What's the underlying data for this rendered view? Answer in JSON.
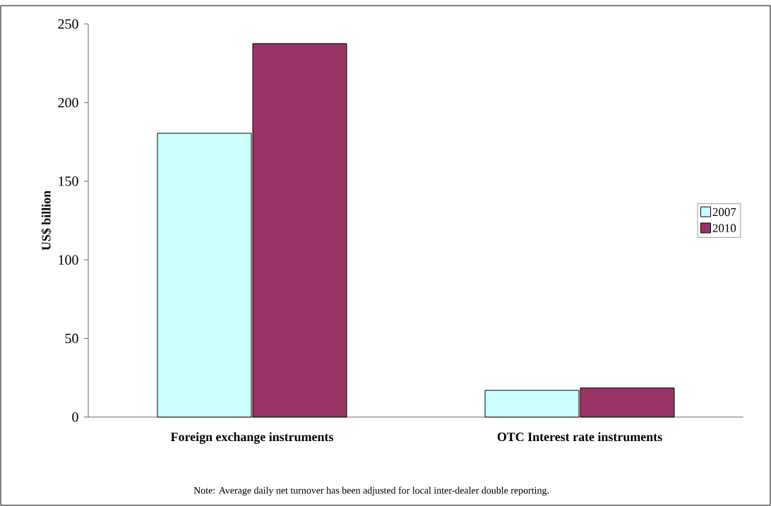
{
  "chart_data": {
    "type": "bar",
    "ylabel": "US$ billion",
    "categories": [
      "Foreign exchange instruments",
      "OTC Interest rate instruments"
    ],
    "series": [
      {
        "name": "2007",
        "color": "#ccffff",
        "values": [
          180.5,
          17
        ]
      },
      {
        "name": "2010",
        "color": "#993366",
        "values": [
          237.5,
          18.5
        ]
      }
    ],
    "ylim": [
      0,
      250
    ],
    "yticks": [
      0,
      50,
      100,
      150,
      200,
      250
    ],
    "grid": false,
    "legend": "right",
    "annotations": [
      "Note: Average daily net turnover has been adjusted for local inter-dealer double reporting."
    ]
  }
}
